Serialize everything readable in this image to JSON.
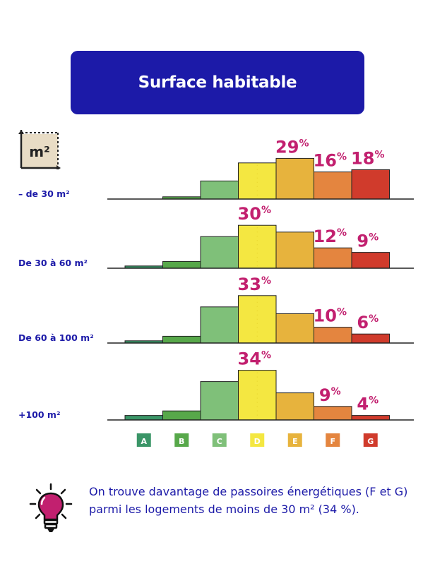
{
  "title": "Surface habitable",
  "unit_icon_text": "m²",
  "colors": {
    "title_bg": "#1c1aa8",
    "label_text": "#1c1aa8",
    "pct_text": "#c2206f",
    "classes": {
      "A": "#3a9567",
      "B": "#57a84a",
      "C": "#7fc079",
      "D": "#f4e741",
      "E": "#e7b33d",
      "F": "#e4853f",
      "G": "#d03b2c"
    }
  },
  "legend": [
    "A",
    "B",
    "C",
    "D",
    "E",
    "F",
    "G"
  ],
  "chart_data": {
    "type": "bar",
    "categories": [
      "A",
      "B",
      "C",
      "D",
      "E",
      "F",
      "G"
    ],
    "series": [
      {
        "name": "– de 30 m²",
        "values": [
          0,
          1,
          8,
          16,
          18,
          12,
          13
        ],
        "labels": {
          "E": "29%",
          "F": "16%",
          "G": "18%"
        }
      },
      {
        "name": "De 30 à 60 m²",
        "values": [
          1,
          3,
          14,
          19,
          16,
          9,
          7
        ],
        "labels": {
          "D": "30%",
          "F": "12%",
          "G": "9%"
        }
      },
      {
        "name": "De 60 à 100 m²",
        "values": [
          1,
          3,
          16,
          21,
          13,
          7,
          4
        ],
        "labels": {
          "D": "33%",
          "F": "10%",
          "G": "6%"
        }
      },
      {
        "name": "+100 m²",
        "values": [
          2,
          4,
          17,
          22,
          12,
          6,
          2
        ],
        "labels": {
          "D": "34%",
          "F": "9%",
          "G": "4%"
        }
      }
    ]
  },
  "footer": {
    "text": "On trouve davantage de passoires énergétiques (F et G) parmi les logements de moins de 30 m² (34 %)."
  }
}
